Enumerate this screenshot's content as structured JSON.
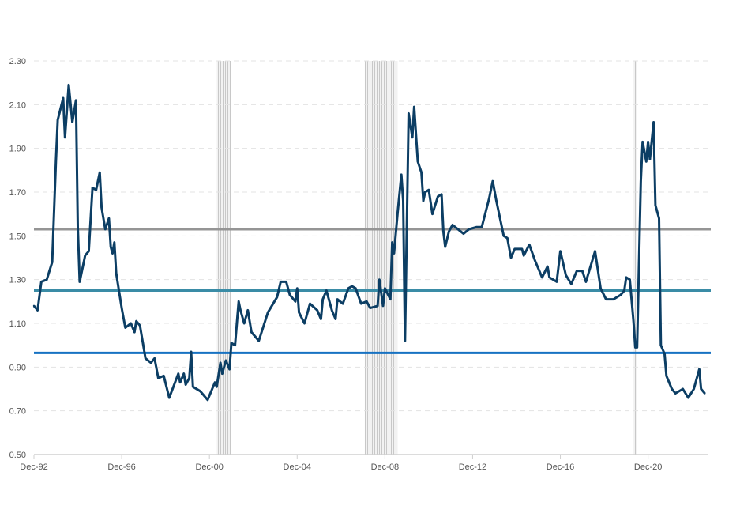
{
  "chart_data": {
    "type": "line",
    "title": "",
    "xlabel": "",
    "ylabel": "",
    "ylim": [
      0.5,
      2.3
    ],
    "xlim": [
      "1992-12",
      "2023-09"
    ],
    "grid": "horizontal dashed",
    "legend": "none",
    "y_ticks": [
      "0.50",
      "0.70",
      "0.90",
      "1.10",
      "1.30",
      "1.50",
      "1.70",
      "1.90",
      "2.10",
      "2.30"
    ],
    "x_ticks": [
      {
        "label": "Dec-92",
        "date": "1992-12"
      },
      {
        "label": "Dec-96",
        "date": "1996-12"
      },
      {
        "label": "Dec-00",
        "date": "2000-12"
      },
      {
        "label": "Dec-04",
        "date": "2004-12"
      },
      {
        "label": "Dec-08",
        "date": "2008-12"
      },
      {
        "label": "Dec-12",
        "date": "2012-12"
      },
      {
        "label": "Dec-16",
        "date": "2016-12"
      },
      {
        "label": "Dec-20",
        "date": "2020-12"
      }
    ],
    "reference_lines": [
      {
        "value": 1.53,
        "color": "#959595"
      },
      {
        "value": 1.25,
        "color": "#3a8ca6"
      },
      {
        "value": 0.965,
        "color": "#1772c2"
      }
    ],
    "shaded_periods": [
      {
        "start": "2001-04",
        "end": "2001-12"
      },
      {
        "start": "2008-01",
        "end": "2009-07"
      },
      {
        "start": "2020-04",
        "end": "2020-06"
      }
    ],
    "series": [
      {
        "color": "#0c3e64",
        "points": [
          [
            "1992-12",
            1.18
          ],
          [
            "1993-02",
            1.16
          ],
          [
            "1993-04",
            1.29
          ],
          [
            "1993-07",
            1.3
          ],
          [
            "1993-10",
            1.38
          ],
          [
            "1993-12",
            1.84
          ],
          [
            "1994-01",
            2.03
          ],
          [
            "1994-04",
            2.13
          ],
          [
            "1994-05",
            1.95
          ],
          [
            "1994-07",
            2.19
          ],
          [
            "1994-09",
            2.02
          ],
          [
            "1994-11",
            2.12
          ],
          [
            "1994-12",
            1.54
          ],
          [
            "1995-01",
            1.29
          ],
          [
            "1995-04",
            1.41
          ],
          [
            "1995-06",
            1.43
          ],
          [
            "1995-08",
            1.72
          ],
          [
            "1995-10",
            1.71
          ],
          [
            "1995-12",
            1.79
          ],
          [
            "1996-01",
            1.63
          ],
          [
            "1996-03",
            1.53
          ],
          [
            "1996-05",
            1.58
          ],
          [
            "1996-06",
            1.45
          ],
          [
            "1996-07",
            1.42
          ],
          [
            "1996-08",
            1.47
          ],
          [
            "1996-09",
            1.33
          ],
          [
            "1996-12",
            1.17
          ],
          [
            "1997-02",
            1.08
          ],
          [
            "1997-05",
            1.1
          ],
          [
            "1997-07",
            1.06
          ],
          [
            "1997-08",
            1.11
          ],
          [
            "1997-10",
            1.09
          ],
          [
            "1998-01",
            0.94
          ],
          [
            "1998-04",
            0.92
          ],
          [
            "1998-06",
            0.94
          ],
          [
            "1998-08",
            0.85
          ],
          [
            "1998-11",
            0.86
          ],
          [
            "1999-02",
            0.76
          ],
          [
            "1999-07",
            0.87
          ],
          [
            "1999-08",
            0.83
          ],
          [
            "1999-10",
            0.87
          ],
          [
            "1999-11",
            0.82
          ],
          [
            "2000-01",
            0.85
          ],
          [
            "2000-02",
            0.97
          ],
          [
            "2000-03",
            0.81
          ],
          [
            "2000-07",
            0.79
          ],
          [
            "2000-11",
            0.75
          ],
          [
            "2001-03",
            0.83
          ],
          [
            "2001-04",
            0.81
          ],
          [
            "2001-06",
            0.92
          ],
          [
            "2001-07",
            0.87
          ],
          [
            "2001-09",
            0.93
          ],
          [
            "2001-11",
            0.89
          ],
          [
            "2001-12",
            1.01
          ],
          [
            "2002-02",
            1.0
          ],
          [
            "2002-04",
            1.2
          ],
          [
            "2002-05",
            1.16
          ],
          [
            "2002-07",
            1.1
          ],
          [
            "2002-09",
            1.16
          ],
          [
            "2002-11",
            1.06
          ],
          [
            "2003-03",
            1.02
          ],
          [
            "2003-08",
            1.15
          ],
          [
            "2004-01",
            1.22
          ],
          [
            "2004-03",
            1.29
          ],
          [
            "2004-06",
            1.29
          ],
          [
            "2004-08",
            1.23
          ],
          [
            "2004-11",
            1.2
          ],
          [
            "2004-12",
            1.26
          ],
          [
            "2005-01",
            1.15
          ],
          [
            "2005-04",
            1.1
          ],
          [
            "2005-07",
            1.19
          ],
          [
            "2005-11",
            1.16
          ],
          [
            "2006-01",
            1.12
          ],
          [
            "2006-02",
            1.21
          ],
          [
            "2006-04",
            1.25
          ],
          [
            "2006-07",
            1.16
          ],
          [
            "2006-09",
            1.12
          ],
          [
            "2006-10",
            1.21
          ],
          [
            "2007-01",
            1.19
          ],
          [
            "2007-04",
            1.26
          ],
          [
            "2007-06",
            1.27
          ],
          [
            "2007-08",
            1.26
          ],
          [
            "2007-11",
            1.19
          ],
          [
            "2008-02",
            1.2
          ],
          [
            "2008-04",
            1.17
          ],
          [
            "2008-08",
            1.18
          ],
          [
            "2008-09",
            1.3
          ],
          [
            "2008-11",
            1.18
          ],
          [
            "2008-12",
            1.26
          ],
          [
            "2009-03",
            1.21
          ],
          [
            "2009-04",
            1.47
          ],
          [
            "2009-05",
            1.42
          ],
          [
            "2009-07",
            1.61
          ],
          [
            "2009-09",
            1.78
          ],
          [
            "2009-10",
            1.66
          ],
          [
            "2009-11",
            1.02
          ],
          [
            "2010-01",
            2.06
          ],
          [
            "2010-03",
            1.95
          ],
          [
            "2010-04",
            2.09
          ],
          [
            "2010-06",
            1.84
          ],
          [
            "2010-08",
            1.79
          ],
          [
            "2010-09",
            1.66
          ],
          [
            "2010-10",
            1.7
          ],
          [
            "2010-12",
            1.71
          ],
          [
            "2011-02",
            1.6
          ],
          [
            "2011-05",
            1.68
          ],
          [
            "2011-07",
            1.69
          ],
          [
            "2011-08",
            1.52
          ],
          [
            "2011-09",
            1.45
          ],
          [
            "2011-11",
            1.52
          ],
          [
            "2012-01",
            1.55
          ],
          [
            "2012-07",
            1.51
          ],
          [
            "2012-10",
            1.53
          ],
          [
            "2013-02",
            1.54
          ],
          [
            "2013-05",
            1.54
          ],
          [
            "2013-09",
            1.67
          ],
          [
            "2013-11",
            1.75
          ],
          [
            "2014-01",
            1.66
          ],
          [
            "2014-05",
            1.5
          ],
          [
            "2014-07",
            1.49
          ],
          [
            "2014-09",
            1.4
          ],
          [
            "2014-11",
            1.44
          ],
          [
            "2015-03",
            1.44
          ],
          [
            "2015-04",
            1.41
          ],
          [
            "2015-07",
            1.46
          ],
          [
            "2015-10",
            1.39
          ],
          [
            "2016-02",
            1.31
          ],
          [
            "2016-05",
            1.36
          ],
          [
            "2016-06",
            1.31
          ],
          [
            "2016-10",
            1.29
          ],
          [
            "2016-12",
            1.43
          ],
          [
            "2017-03",
            1.32
          ],
          [
            "2017-06",
            1.28
          ],
          [
            "2017-09",
            1.34
          ],
          [
            "2017-12",
            1.34
          ],
          [
            "2018-02",
            1.29
          ],
          [
            "2018-07",
            1.43
          ],
          [
            "2018-10",
            1.26
          ],
          [
            "2019-01",
            1.21
          ],
          [
            "2019-05",
            1.21
          ],
          [
            "2019-09",
            1.23
          ],
          [
            "2019-11",
            1.25
          ],
          [
            "2019-12",
            1.31
          ],
          [
            "2020-02",
            1.3
          ],
          [
            "2020-04",
            1.11
          ],
          [
            "2020-05",
            0.99
          ],
          [
            "2020-06",
            0.99
          ],
          [
            "2020-08",
            1.75
          ],
          [
            "2020-09",
            1.93
          ],
          [
            "2020-11",
            1.84
          ],
          [
            "2020-12",
            1.93
          ],
          [
            "2021-01",
            1.85
          ],
          [
            "2021-03",
            2.02
          ],
          [
            "2021-04",
            1.64
          ],
          [
            "2021-06",
            1.58
          ],
          [
            "2021-07",
            1.0
          ],
          [
            "2021-09",
            0.96
          ],
          [
            "2021-10",
            0.86
          ],
          [
            "2022-01",
            0.8
          ],
          [
            "2022-03",
            0.78
          ],
          [
            "2022-07",
            0.8
          ],
          [
            "2022-10",
            0.76
          ],
          [
            "2023-01",
            0.8
          ],
          [
            "2023-04",
            0.89
          ],
          [
            "2023-05",
            0.8
          ],
          [
            "2023-07",
            0.78
          ]
        ]
      }
    ]
  }
}
